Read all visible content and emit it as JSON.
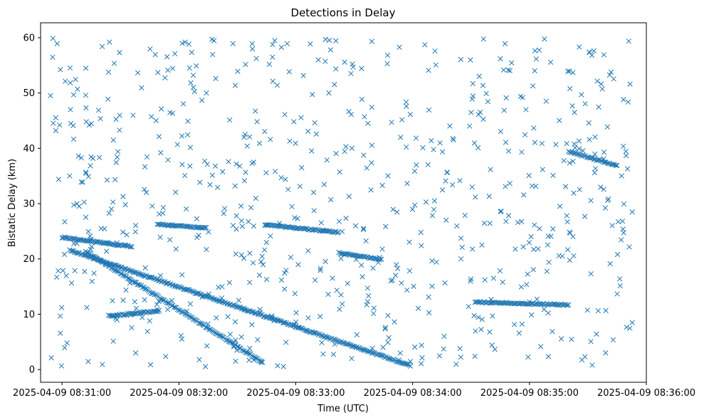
{
  "chart_data": {
    "type": "scatter",
    "title": "Detections in Delay",
    "xlabel": "Time (UTC)",
    "ylabel": "Bistatic Delay (km)",
    "marker": "x",
    "color": "#1f77b4",
    "grid": false,
    "legend": "none",
    "xlim": [
      "2025-04-09 08:30:49",
      "2025-04-09 08:36:00"
    ],
    "ylim": [
      -2.3,
      62.7
    ],
    "x_ticks": [
      "2025-04-09 08:31:00",
      "2025-04-09 08:32:00",
      "2025-04-09 08:33:00",
      "2025-04-09 08:34:00",
      "2025-04-09 08:35:00",
      "2025-04-09 08:36:00"
    ],
    "y_ticks": [
      0,
      10,
      20,
      30,
      40,
      50,
      60
    ],
    "tracks": [
      {
        "from": [
          "2025-04-09 08:31:04",
          21.6
        ],
        "to": [
          "2025-04-09 08:33:59",
          0.7
        ]
      },
      {
        "from": [
          "2025-04-09 08:31:00",
          23.9
        ],
        "to": [
          "2025-04-09 08:31:36",
          22.2
        ]
      },
      {
        "from": [
          "2025-04-09 08:31:12",
          21.4
        ],
        "to": [
          "2025-04-09 08:32:43",
          1.3
        ]
      },
      {
        "from": [
          "2025-04-09 08:31:24",
          9.7
        ],
        "to": [
          "2025-04-09 08:31:50",
          10.6
        ]
      },
      {
        "from": [
          "2025-04-09 08:31:49",
          26.3
        ],
        "to": [
          "2025-04-09 08:32:14",
          25.6
        ]
      },
      {
        "from": [
          "2025-04-09 08:32:44",
          26.2
        ],
        "to": [
          "2025-04-09 08:33:22",
          24.8
        ]
      },
      {
        "from": [
          "2025-04-09 08:33:22",
          21.1
        ],
        "to": [
          "2025-04-09 08:33:44",
          19.9
        ]
      },
      {
        "from": [
          "2025-04-09 08:34:32",
          12.2
        ],
        "to": [
          "2025-04-09 08:35:20",
          11.7
        ]
      },
      {
        "from": [
          "2025-04-09 08:35:20",
          39.4
        ],
        "to": [
          "2025-04-09 08:35:45",
          36.9
        ]
      }
    ],
    "scatter_count": 720
  }
}
